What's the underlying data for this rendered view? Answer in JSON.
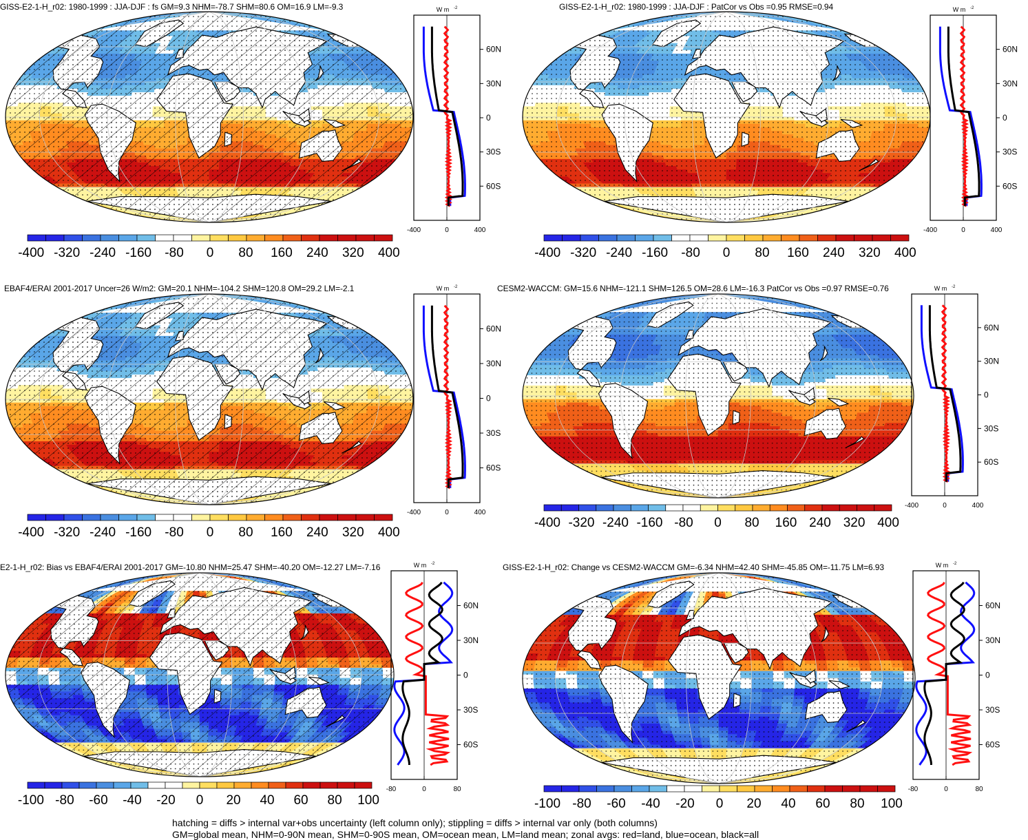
{
  "panels": [
    {
      "id": "p1",
      "title": "GISS-E2-1-H_r02: 1980-1999 : JJA-DJF : fs GM=9.3 NHM=-78.7 SHM=80.6 OM=16.9 LM=-9.3",
      "hatched": true,
      "profile_unit": "W m",
      "profile_lat_labels": [
        "60N",
        "30N",
        "0",
        "30S",
        "60S"
      ],
      "profile_x_labels": [
        "-400",
        "0",
        "400"
      ],
      "colorbar_labels": [
        "-400",
        "-320",
        "-240",
        "-160",
        "-80",
        "0",
        "80",
        "160",
        "240",
        "320",
        "400"
      ]
    },
    {
      "id": "p2",
      "title": "GISS-E2-1-H_r02: 1980-1999 : JJA-DJF : PatCor vs Obs =0.95 RMSE=0.94",
      "hatched": false,
      "profile_unit": "W m",
      "profile_lat_labels": [
        "60N",
        "30N",
        "0",
        "30S",
        "60S"
      ],
      "profile_x_labels": [
        "-400",
        "0",
        "400"
      ],
      "colorbar_labels": [
        "-400",
        "-320",
        "-240",
        "-160",
        "-80",
        "0",
        "80",
        "160",
        "240",
        "320",
        "400"
      ]
    },
    {
      "id": "p3",
      "title": "EBAF4/ERAI 2001-2017 Uncer=26 W/m2: GM=20.1 NHM=-104.2 SHM=120.8 OM=29.2 LM=-2.1",
      "hatched": true,
      "profile_unit": "W m",
      "profile_lat_labels": [
        "60N",
        "30N",
        "0",
        "30S",
        "60S"
      ],
      "profile_x_labels": [
        "-400",
        "0",
        "400"
      ],
      "colorbar_labels": [
        "-400",
        "-320",
        "-240",
        "-160",
        "-80",
        "0",
        "80",
        "160",
        "240",
        "320",
        "400"
      ]
    },
    {
      "id": "p4",
      "title": "CESM2-WACCM: GM=15.6 NHM=-121.1 SHM=126.5 OM=28.6 LM=-16.3 PatCor vs Obs =0.97 RMSE=0.76",
      "hatched": false,
      "profile_unit": "W m",
      "profile_lat_labels": [
        "60N",
        "30N",
        "0",
        "30S",
        "60S"
      ],
      "profile_x_labels": [
        "-400",
        "0",
        "400"
      ],
      "colorbar_labels": [
        "-400",
        "-320",
        "-240",
        "-160",
        "-80",
        "0",
        "80",
        "160",
        "240",
        "320",
        "400"
      ]
    },
    {
      "id": "p5",
      "title": "E2-1-H_r02: Bias vs EBAF4/ERAI 2001-2017 GM=-10.80 NHM=25.47 SHM=-40.20 OM=-12.27 LM=-7.16",
      "hatched": true,
      "profile_unit": "W m",
      "profile_lat_labels": [
        "60N",
        "30N",
        "0",
        "30S",
        "60S"
      ],
      "profile_x_labels": [
        "-80",
        "0",
        "80"
      ],
      "colorbar_labels": [
        "-100",
        "-80",
        "-60",
        "-40",
        "-20",
        "0",
        "20",
        "40",
        "60",
        "80",
        "100"
      ]
    },
    {
      "id": "p6",
      "title": "GISS-E2-1-H_r02: Change vs CESM2-WACCM GM=-6.34 NHM=42.40 SHM=-45.85 OM=-11.75 LM=6.93",
      "hatched": false,
      "profile_unit": "W m",
      "profile_lat_labels": [
        "60N",
        "30N",
        "0",
        "30S",
        "60S"
      ],
      "profile_x_labels": [
        "-80",
        "0",
        "80"
      ],
      "colorbar_labels": [
        "-100",
        "-80",
        "-60",
        "-40",
        "-20",
        "0",
        "20",
        "40",
        "60",
        "80",
        "100"
      ]
    }
  ],
  "unit_superscript": "-2",
  "colormap": [
    "#2525e6",
    "#3050e8",
    "#3a72e0",
    "#4a8ee0",
    "#5aa6e8",
    "#70bde8",
    "#ffffff",
    "#ffffff",
    "#fff4a0",
    "#ffde60",
    "#ffc840",
    "#ffac30",
    "#ff8c20",
    "#f06018",
    "#e03010",
    "#cc1010"
  ],
  "footer": {
    "line1": "hatching = diffs > internal var+obs uncertainty (left column only); stippling = diffs > internal var only (both columns)",
    "line2": "GM=global mean, NHM=0-90N mean, SHM=0-90S mean, OM=ocean mean, LM=land mean; zonal avgs: red=land, blue=ocean, black=all"
  }
}
